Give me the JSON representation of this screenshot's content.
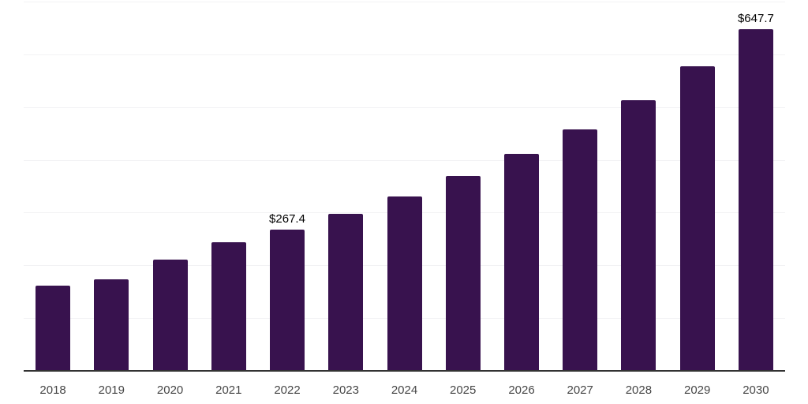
{
  "chart_data": {
    "type": "bar",
    "title": "",
    "xlabel": "",
    "ylabel": "",
    "categories": [
      "2018",
      "2019",
      "2020",
      "2021",
      "2022",
      "2023",
      "2024",
      "2025",
      "2026",
      "2027",
      "2028",
      "2029",
      "2030"
    ],
    "values": [
      161.5,
      174.0,
      210.5,
      243.5,
      267.4,
      298.0,
      331.0,
      369.5,
      411.0,
      457.5,
      512.5,
      577.0,
      647.7
    ],
    "annotations": [
      {
        "category": "2022",
        "text": "$267.4"
      },
      {
        "category": "2030",
        "text": "$647.7"
      }
    ],
    "ylim": [
      0,
      700
    ],
    "gridline_values": [
      100,
      200,
      300,
      400,
      500,
      600,
      700
    ],
    "grid": "horizontal",
    "legend_position": "none",
    "y_axis_labels_visible": false
  },
  "style": {
    "bar_color": "#38124e",
    "gridline_color": "#f2f2f4",
    "axis_line_color": "#333333",
    "tick_label_color": "#474747",
    "data_label_color": "#000000",
    "background_color": "#ffffff"
  }
}
